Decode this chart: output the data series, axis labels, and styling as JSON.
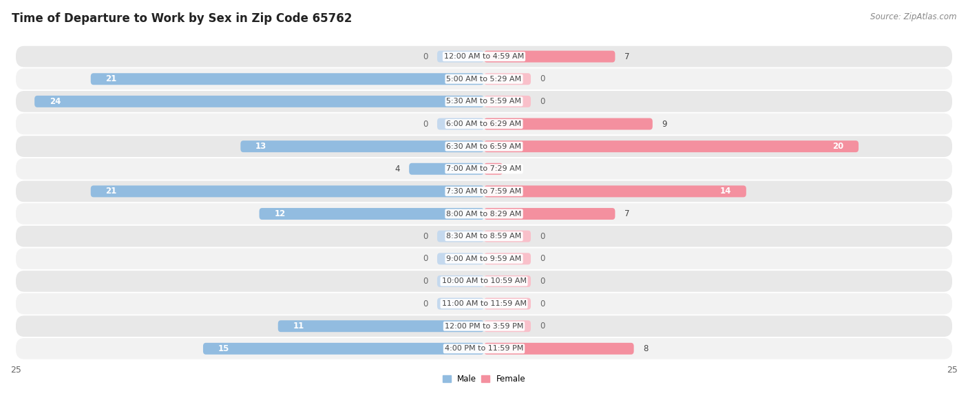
{
  "title": "Time of Departure to Work by Sex in Zip Code 65762",
  "source": "Source: ZipAtlas.com",
  "categories": [
    "12:00 AM to 4:59 AM",
    "5:00 AM to 5:29 AM",
    "5:30 AM to 5:59 AM",
    "6:00 AM to 6:29 AM",
    "6:30 AM to 6:59 AM",
    "7:00 AM to 7:29 AM",
    "7:30 AM to 7:59 AM",
    "8:00 AM to 8:29 AM",
    "8:30 AM to 8:59 AM",
    "9:00 AM to 9:59 AM",
    "10:00 AM to 10:59 AM",
    "11:00 AM to 11:59 AM",
    "12:00 PM to 3:59 PM",
    "4:00 PM to 11:59 PM"
  ],
  "male": [
    0,
    21,
    24,
    0,
    13,
    4,
    21,
    12,
    0,
    0,
    0,
    0,
    11,
    15
  ],
  "female": [
    7,
    0,
    0,
    9,
    20,
    1,
    14,
    7,
    0,
    0,
    0,
    0,
    0,
    8
  ],
  "male_color": "#92bce0",
  "female_color": "#f4909f",
  "male_color_light": "#c5d9ee",
  "female_color_light": "#f9c0ca",
  "row_bg_odd": "#e8e8e8",
  "row_bg_even": "#f2f2f2",
  "axis_max": 25,
  "title_fontsize": 12,
  "source_fontsize": 8.5,
  "label_fontsize": 8.5,
  "category_fontsize": 8,
  "tick_fontsize": 9,
  "bar_height": 0.52,
  "stub_size": 2.5,
  "figure_bg": "#ffffff",
  "text_dark": "#444444",
  "text_light": "#666666"
}
